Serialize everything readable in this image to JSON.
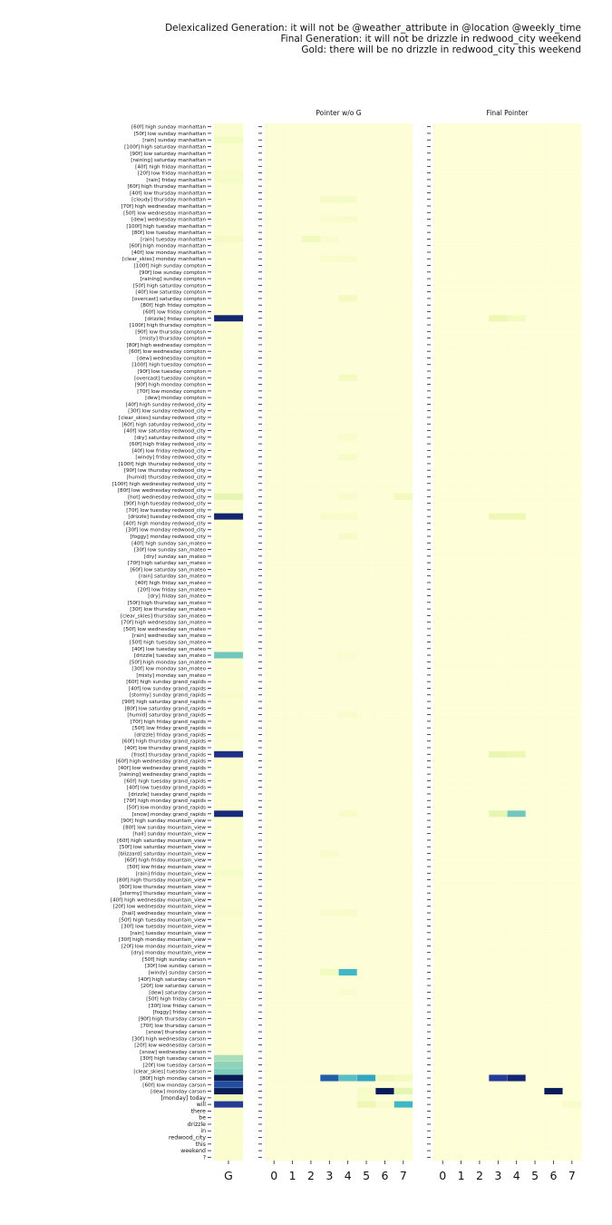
{
  "header": {
    "line1": "Delexicalized Generation: it will not be @weather_attribute in @location @weekly_time",
    "line2": "Final Generation: it will not be drizzle in redwood_city weekend",
    "line3": "Gold: there will be no drizzle in redwood_city this weekend"
  },
  "chart_data": {
    "type": "heatmap",
    "colormap": "YlGnBu",
    "rows": [
      "[60f] high sunday manhattan",
      "[50f] low sunday manhattan",
      "[rain] sunday manhattan",
      "[100f] high saturday manhattan",
      "[90f] low saturday manhattan",
      "[raining] saturday manhattan",
      "[40f] high friday manhattan",
      "[20f] low friday manhattan",
      "[rain] friday manhattan",
      "[60f] high thursday manhattan",
      "[40f] low thursday manhattan",
      "[cloudy] thursday manhattan",
      "[70f] high wednesday manhattan",
      "[50f] low wednesday manhattan",
      "[dew] wednesday manhattan",
      "[100f] high tuesday manhattan",
      "[80f] low tuesday manhattan",
      "[rain] tuesday manhattan",
      "[60f] high monday manhattan",
      "[40f] low monday manhattan",
      "[clear_skies] monday manhattan",
      "[100f] high sunday compton",
      "[90f] low sunday compton",
      "[raining] sunday compton",
      "[50f] high saturday compton",
      "[40f] low saturday compton",
      "[overcast] saturday compton",
      "[80f] high friday compton",
      "[60f] low friday compton",
      "[drizzle] friday compton",
      "[100f] high thursday compton",
      "[90f] low thursday compton",
      "[misty] thursday compton",
      "[80f] high wednesday compton",
      "[60f] low wednesday compton",
      "[dew] wednesday compton",
      "[100f] high tuesday compton",
      "[90f] low tuesday compton",
      "[overcast] tuesday compton",
      "[90f] high monday compton",
      "[70f] low monday compton",
      "[dew] monday compton",
      "[40f] high sunday redwood_city",
      "[30f] low sunday redwood_city",
      "[clear_skies] sunday redwood_city",
      "[60f] high saturday redwood_city",
      "[40f] low saturday redwood_city",
      "[dry] saturday redwood_city",
      "[60f] high friday redwood_city",
      "[40f] low friday redwood_city",
      "[windy] friday redwood_city",
      "[100f] high thursday redwood_city",
      "[90f] low thursday redwood_city",
      "[humid] thursday redwood_city",
      "[100f] high wednesday redwood_city",
      "[80f] low wednesday redwood_city",
      "[hot] wednesday redwood_city",
      "[90f] high tuesday redwood_city",
      "[70f] low tuesday redwood_city",
      "[drizzle] tuesday redwood_city",
      "[40f] high monday redwood_city",
      "[30f] low monday redwood_city",
      "[foggy] monday redwood_city",
      "[40f] high sunday san_mateo",
      "[30f] low sunday san_mateo",
      "[dry] sunday san_mateo",
      "[70f] high saturday san_mateo",
      "[60f] low saturday san_mateo",
      "[rain] saturday san_mateo",
      "[40f] high friday san_mateo",
      "[20f] low friday san_mateo",
      "[dry] friday san_mateo",
      "[50f] high thursday san_mateo",
      "[30f] low thursday san_mateo",
      "[clear_skies] thursday san_mateo",
      "[70f] high wednesday san_mateo",
      "[50f] low wednesday san_mateo",
      "[rain] wednesday san_mateo",
      "[50f] high tuesday san_mateo",
      "[40f] low tuesday san_mateo",
      "[drizzle] tuesday san_mateo",
      "[50f] high monday san_mateo",
      "[30f] low monday san_mateo",
      "[misty] monday san_mateo",
      "[60f] high sunday grand_rapids",
      "[40f] low sunday grand_rapids",
      "[stormy] sunday grand_rapids",
      "[90f] high saturday grand_rapids",
      "[80f] low saturday grand_rapids",
      "[humid] saturday grand_rapids",
      "[70f] high friday grand_rapids",
      "[50f] low friday grand_rapids",
      "[drizzle] friday grand_rapids",
      "[60f] high thursday grand_rapids",
      "[40f] low thursday grand_rapids",
      "[frost] thursday grand_rapids",
      "[60f] high wednesday grand_rapids",
      "[40f] low wednesday grand_rapids",
      "[raining] wednesday grand_rapids",
      "[60f] high tuesday grand_rapids",
      "[40f] low tuesday grand_rapids",
      "[drizzle] tuesday grand_rapids",
      "[70f] high monday grand_rapids",
      "[50f] low monday grand_rapids",
      "[snow] monday grand_rapids",
      "[90f] high sunday mountain_view",
      "[80f] low sunday mountain_view",
      "[hail] sunday mountain_view",
      "[60f] high saturday mountain_view",
      "[50f] low saturday mountain_view",
      "[blizzard] saturday mountain_view",
      "[60f] high friday mountain_view",
      "[50f] low friday mountain_view",
      "[rain] friday mountain_view",
      "[80f] high thursday mountain_view",
      "[60f] low thursday mountain_view",
      "[stormy] thursday mountain_view",
      "[40f] high wednesday mountain_view",
      "[20f] low wednesday mountain_view",
      "[hail] wednesday mountain_view",
      "[50f] high tuesday mountain_view",
      "[30f] low tuesday mountain_view",
      "[rain] tuesday mountain_view",
      "[30f] high monday mountain_view",
      "[20f] low monday mountain_view",
      "[dry] monday mountain_view",
      "[50f] high sunday carson",
      "[30f] low sunday carson",
      "[windy] sunday carson",
      "[40f] high saturday carson",
      "[20f] low saturday carson",
      "[dew] saturday carson",
      "[50f] high friday carson",
      "[30f] low friday carson",
      "[foggy] friday carson",
      "[90f] high thursday carson",
      "[70f] low thursday carson",
      "[snow] thursday carson",
      "[30f] high wednesday carson",
      "[20f] low wednesday carson",
      "[snow] wednesday carson",
      "[30f] high tuesday carson",
      "[20f] low tuesday carson",
      "[clear_skies] tuesday carson",
      "[80f] high monday carson",
      "[60f] low monday carson",
      "[dew] monday carson",
      "[monday] today",
      "will",
      "there",
      "be",
      "drizzle",
      "in",
      "redwood_city",
      "this",
      "weekend",
      "?"
    ],
    "panels": [
      {
        "title": "",
        "columns": [
          "G"
        ],
        "base": 0.03,
        "cells": [
          [
            2,
            0,
            0.08
          ],
          [
            7,
            0,
            0.05
          ],
          [
            8,
            0,
            0.06
          ],
          [
            17,
            0,
            0.07
          ],
          [
            29,
            0,
            0.95
          ],
          [
            56,
            0,
            0.15
          ],
          [
            59,
            0,
            0.95
          ],
          [
            65,
            0,
            0.04
          ],
          [
            80,
            0,
            0.4
          ],
          [
            86,
            0,
            0.05
          ],
          [
            92,
            0,
            0.04
          ],
          [
            95,
            0,
            0.9
          ],
          [
            104,
            0,
            0.93
          ],
          [
            113,
            0,
            0.06
          ],
          [
            119,
            0,
            0.05
          ],
          [
            147,
            0,
            0.04
          ],
          [
            141,
            0,
            0.3
          ],
          [
            142,
            0,
            0.35
          ],
          [
            143,
            0,
            0.38
          ],
          [
            144,
            0,
            1.0
          ],
          [
            145,
            0,
            0.8
          ],
          [
            146,
            0,
            1.0
          ],
          [
            147,
            0,
            0.1
          ],
          [
            148,
            0,
            0.85
          ]
        ]
      },
      {
        "title": "Pointer w/o G",
        "columns": [
          "0",
          "1",
          "2",
          "3",
          "4",
          "5",
          "6",
          "7"
        ],
        "base": 0.01,
        "cells": [
          [
            11,
            3,
            0.07
          ],
          [
            11,
            4,
            0.06
          ],
          [
            14,
            3,
            0.04
          ],
          [
            14,
            4,
            0.05
          ],
          [
            17,
            2,
            0.09
          ],
          [
            17,
            3,
            0.04
          ],
          [
            20,
            3,
            0.04
          ],
          [
            20,
            4,
            0.05
          ],
          [
            26,
            4,
            0.08
          ],
          [
            38,
            4,
            0.08
          ],
          [
            47,
            4,
            0.04
          ],
          [
            50,
            4,
            0.06
          ],
          [
            56,
            4,
            0.05
          ],
          [
            56,
            7,
            0.09
          ],
          [
            59,
            3,
            0.05
          ],
          [
            59,
            4,
            0.05
          ],
          [
            62,
            4,
            0.06
          ],
          [
            80,
            4,
            0.03
          ],
          [
            89,
            4,
            0.04
          ],
          [
            104,
            4,
            0.05
          ],
          [
            110,
            3,
            0.05
          ],
          [
            119,
            3,
            0.04
          ],
          [
            119,
            4,
            0.05
          ],
          [
            128,
            3,
            0.08
          ],
          [
            128,
            4,
            0.5
          ],
          [
            131,
            4,
            0.04
          ],
          [
            144,
            3,
            0.75
          ],
          [
            144,
            4,
            0.45
          ],
          [
            144,
            5,
            0.55
          ],
          [
            144,
            6,
            0.1
          ],
          [
            144,
            7,
            0.08
          ],
          [
            146,
            5,
            0.06
          ],
          [
            146,
            6,
            1.0
          ],
          [
            146,
            7,
            0.15
          ],
          [
            147,
            5,
            0.05
          ],
          [
            148,
            5,
            0.12
          ],
          [
            148,
            6,
            0.05
          ],
          [
            148,
            7,
            0.5
          ]
        ]
      },
      {
        "title": "Final Pointer",
        "columns": [
          "0",
          "1",
          "2",
          "3",
          "4",
          "5",
          "6",
          "7"
        ],
        "base": 0.005,
        "cells": [
          [
            29,
            3,
            0.12
          ],
          [
            29,
            4,
            0.08
          ],
          [
            59,
            3,
            0.12
          ],
          [
            59,
            4,
            0.12
          ],
          [
            95,
            3,
            0.14
          ],
          [
            95,
            4,
            0.12
          ],
          [
            104,
            3,
            0.15
          ],
          [
            104,
            4,
            0.4
          ],
          [
            144,
            3,
            0.85
          ],
          [
            144,
            4,
            0.95
          ],
          [
            146,
            6,
            1.0
          ],
          [
            148,
            7,
            0.05
          ]
        ]
      }
    ]
  }
}
